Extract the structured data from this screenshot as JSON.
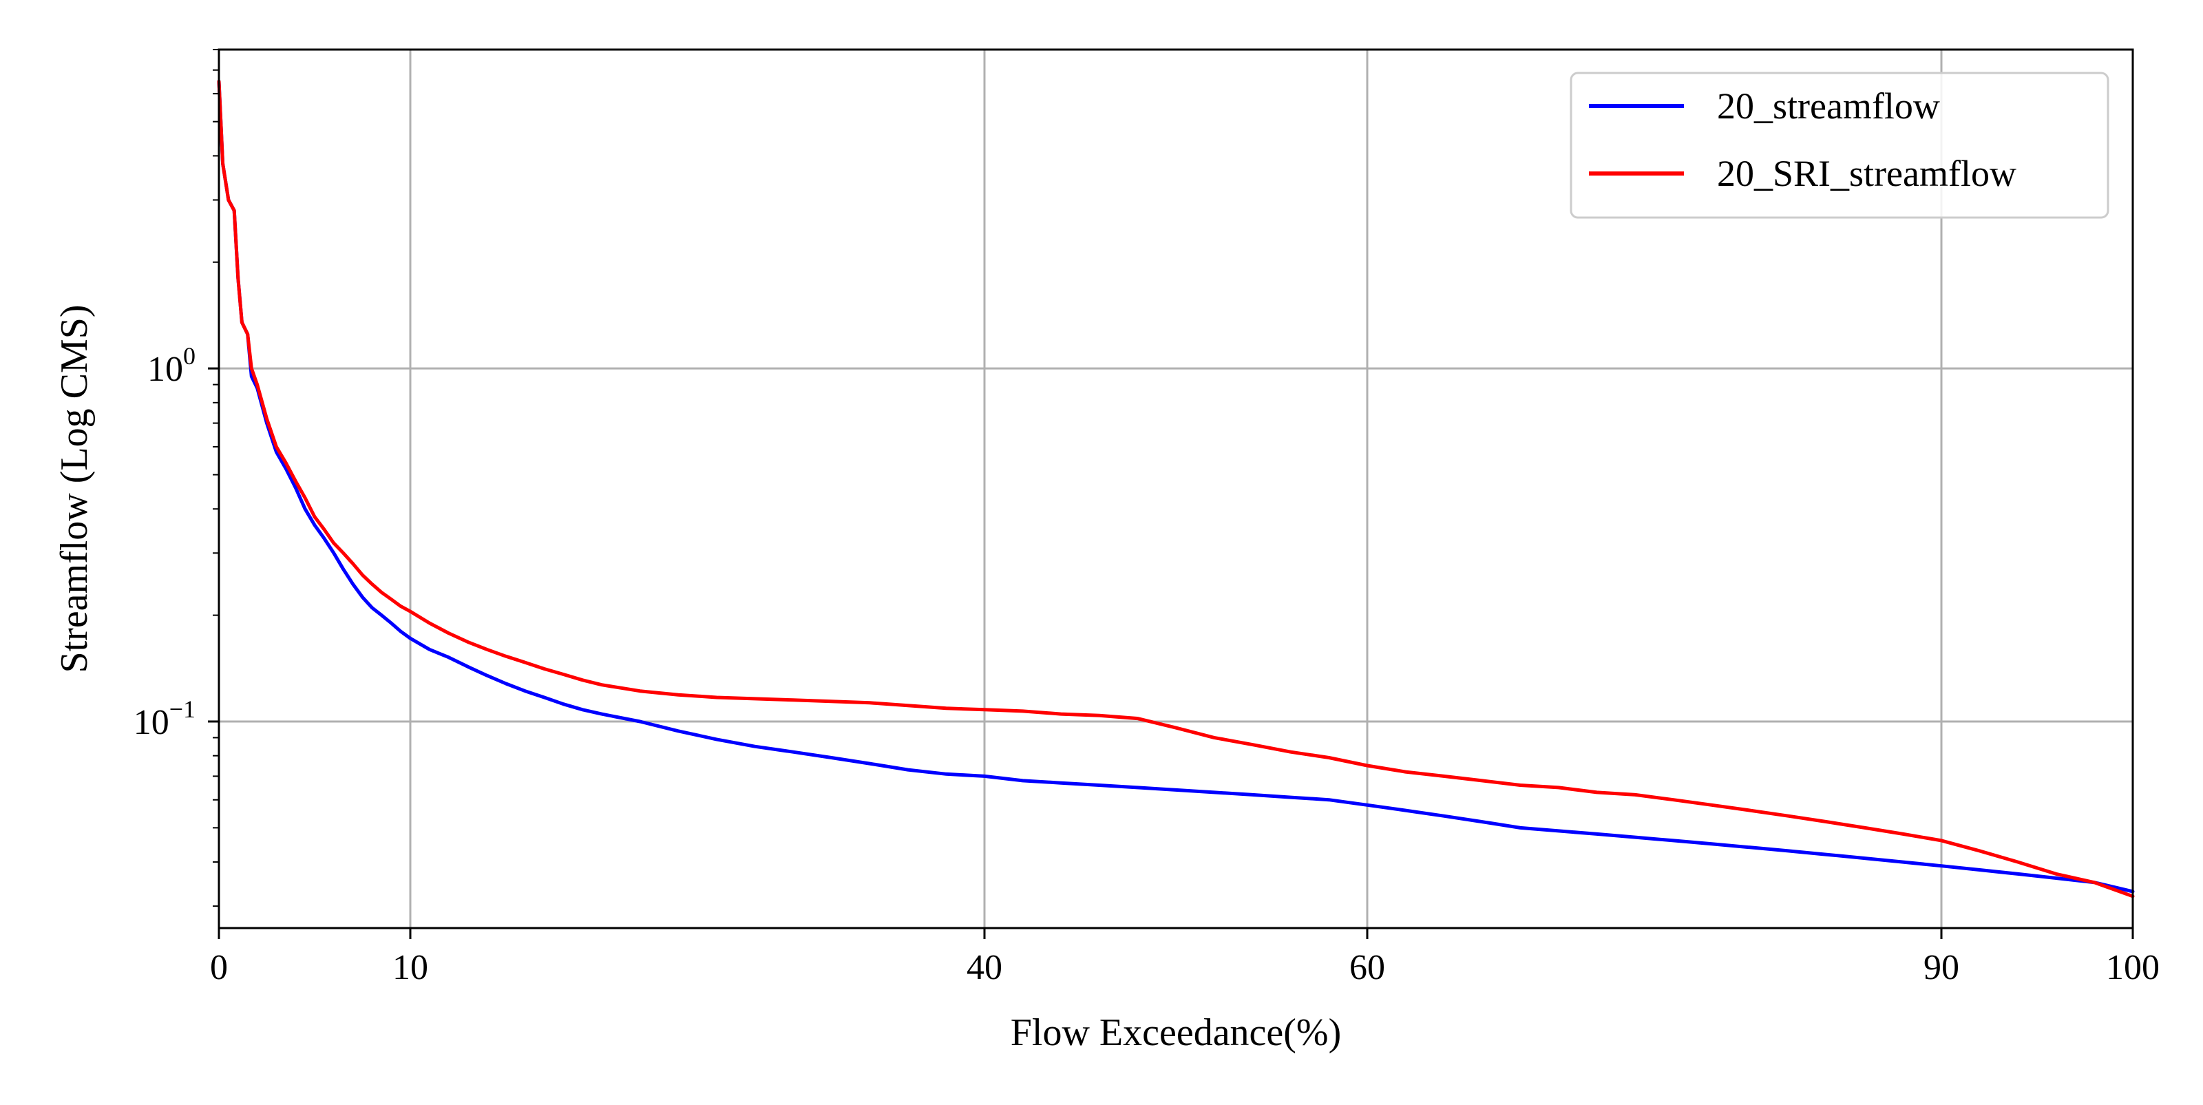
{
  "chart_data": {
    "type": "line",
    "title": "",
    "xlabel": "Flow Exceedance(%)",
    "ylabel": "Streamflow (Log CMS)",
    "xlim": [
      0,
      100
    ],
    "ylim": [
      0.026,
      8.0
    ],
    "yscale": "log",
    "grid": true,
    "legend_position": "top-right",
    "x_ticks": [
      0,
      10,
      40,
      60,
      90,
      100
    ],
    "x_tick_labels": [
      "0",
      "10",
      "40",
      "60",
      "90",
      "100"
    ],
    "y_ticks": [
      1.0,
      0.1
    ],
    "y_tick_labels": [
      {
        "base": "10",
        "exp": "0"
      },
      {
        "base": "10",
        "exp": "−1"
      }
    ],
    "series": [
      {
        "name": "20_streamflow",
        "color": "#0000ff",
        "x": [
          0,
          0.2,
          0.5,
          0.8,
          1.0,
          1.2,
          1.5,
          1.7,
          2.0,
          2.5,
          3.0,
          3.5,
          4.0,
          4.5,
          5.0,
          5.5,
          6.0,
          6.5,
          7.0,
          7.5,
          8.0,
          8.5,
          9.0,
          9.5,
          10,
          11,
          12,
          13,
          14,
          15,
          16,
          17,
          18,
          19,
          20,
          22,
          24,
          26,
          28,
          30,
          32,
          34,
          36,
          38,
          40,
          42,
          44,
          46,
          48,
          50,
          52,
          54,
          56,
          58,
          60,
          62,
          64,
          66,
          68,
          70,
          72,
          74,
          76,
          78,
          80,
          82,
          84,
          86,
          88,
          90,
          92,
          94,
          96,
          98,
          100
        ],
        "values": [
          6.5,
          3.8,
          3.0,
          2.8,
          1.8,
          1.35,
          1.25,
          0.95,
          0.88,
          0.7,
          0.58,
          0.52,
          0.46,
          0.4,
          0.36,
          0.33,
          0.3,
          0.27,
          0.245,
          0.225,
          0.21,
          0.2,
          0.19,
          0.18,
          0.172,
          0.16,
          0.152,
          0.143,
          0.135,
          0.128,
          0.122,
          0.117,
          0.112,
          0.108,
          0.105,
          0.1,
          0.094,
          0.089,
          0.085,
          0.082,
          0.079,
          0.076,
          0.073,
          0.071,
          0.07,
          0.068,
          0.067,
          0.066,
          0.065,
          0.064,
          0.063,
          0.062,
          0.061,
          0.06,
          0.058,
          0.056,
          0.054,
          0.052,
          0.05,
          0.049,
          0.048,
          0.047,
          0.046,
          0.045,
          0.044,
          0.043,
          0.042,
          0.041,
          0.04,
          0.039,
          0.038,
          0.037,
          0.036,
          0.035,
          0.033
        ]
      },
      {
        "name": "20_SRI_streamflow",
        "color": "#ff0000",
        "x": [
          0,
          0.2,
          0.5,
          0.8,
          1.0,
          1.2,
          1.5,
          1.7,
          2.0,
          2.5,
          3.0,
          3.5,
          4.0,
          4.5,
          5.0,
          5.5,
          6.0,
          6.5,
          7.0,
          7.5,
          8.0,
          8.5,
          9.0,
          9.5,
          10,
          11,
          12,
          13,
          14,
          15,
          16,
          17,
          18,
          19,
          20,
          22,
          24,
          26,
          28,
          30,
          32,
          34,
          36,
          38,
          40,
          42,
          44,
          46,
          48,
          50,
          52,
          54,
          56,
          58,
          60,
          62,
          64,
          66,
          68,
          70,
          72,
          74,
          76,
          78,
          80,
          82,
          84,
          86,
          88,
          90,
          92,
          94,
          96,
          98,
          100
        ],
        "values": [
          6.5,
          3.8,
          3.0,
          2.8,
          1.8,
          1.35,
          1.25,
          1.0,
          0.9,
          0.72,
          0.6,
          0.54,
          0.48,
          0.43,
          0.38,
          0.35,
          0.32,
          0.3,
          0.28,
          0.26,
          0.245,
          0.232,
          0.222,
          0.212,
          0.205,
          0.19,
          0.178,
          0.168,
          0.16,
          0.153,
          0.147,
          0.141,
          0.136,
          0.131,
          0.127,
          0.122,
          0.119,
          0.117,
          0.116,
          0.115,
          0.114,
          0.113,
          0.111,
          0.109,
          0.108,
          0.107,
          0.105,
          0.104,
          0.102,
          0.096,
          0.09,
          0.086,
          0.082,
          0.079,
          0.075,
          0.072,
          0.07,
          0.068,
          0.066,
          0.065,
          0.063,
          0.062,
          0.06,
          0.058,
          0.056,
          0.054,
          0.052,
          0.05,
          0.048,
          0.046,
          0.043,
          0.04,
          0.037,
          0.035,
          0.032
        ]
      }
    ]
  }
}
